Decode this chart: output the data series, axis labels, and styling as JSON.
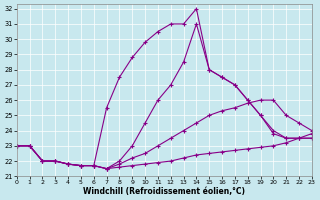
{
  "xlabel": "Windchill (Refroidissement éolien,°C)",
  "xlim": [
    0,
    23
  ],
  "ylim": [
    21,
    32.3
  ],
  "yticks": [
    21,
    22,
    23,
    24,
    25,
    26,
    27,
    28,
    29,
    30,
    31,
    32
  ],
  "xticks": [
    0,
    1,
    2,
    3,
    4,
    5,
    6,
    7,
    8,
    9,
    10,
    11,
    12,
    13,
    14,
    15,
    16,
    17,
    18,
    19,
    20,
    21,
    22,
    23
  ],
  "bg_color": "#c8e8ee",
  "line_color": "#880088",
  "lines": [
    {
      "x": [
        0,
        1,
        2,
        3,
        4,
        5,
        6,
        7,
        8,
        9,
        10,
        11,
        12,
        13,
        14,
        15,
        16,
        17,
        18,
        19,
        20,
        21,
        22,
        23
      ],
      "y": [
        23,
        23,
        22,
        22,
        21.8,
        21.7,
        21.7,
        25.5,
        27.5,
        28.8,
        29.8,
        30.5,
        31,
        31,
        32,
        28,
        27.5,
        27,
        26,
        25,
        24,
        23.5,
        23.5,
        23.5
      ]
    },
    {
      "x": [
        0,
        1,
        2,
        3,
        4,
        5,
        6,
        7,
        8,
        9,
        10,
        11,
        12,
        13,
        14,
        15,
        16,
        17,
        18,
        19,
        20,
        21,
        22,
        23
      ],
      "y": [
        23,
        23,
        22,
        22,
        21.8,
        21.7,
        21.7,
        21.5,
        22,
        23,
        24.5,
        26,
        27,
        28.5,
        31,
        28,
        27.5,
        27,
        26,
        25,
        23.8,
        23.5,
        23.5,
        23.5
      ]
    },
    {
      "x": [
        0,
        1,
        2,
        3,
        4,
        5,
        6,
        7,
        8,
        9,
        10,
        11,
        12,
        13,
        14,
        15,
        16,
        17,
        18,
        19,
        20,
        21,
        22,
        23
      ],
      "y": [
        23,
        23,
        22,
        22,
        21.8,
        21.7,
        21.7,
        21.5,
        21.8,
        22.2,
        22.5,
        23,
        23.5,
        24,
        24.5,
        25,
        25.3,
        25.5,
        25.8,
        26,
        26,
        25,
        24.5,
        24
      ]
    },
    {
      "x": [
        0,
        1,
        2,
        3,
        4,
        5,
        6,
        7,
        8,
        9,
        10,
        11,
        12,
        13,
        14,
        15,
        16,
        17,
        18,
        19,
        20,
        21,
        22,
        23
      ],
      "y": [
        23,
        23,
        22,
        22,
        21.8,
        21.7,
        21.7,
        21.5,
        21.6,
        21.7,
        21.8,
        21.9,
        22,
        22.2,
        22.4,
        22.5,
        22.6,
        22.7,
        22.8,
        22.9,
        23,
        23.2,
        23.5,
        23.8
      ]
    }
  ]
}
